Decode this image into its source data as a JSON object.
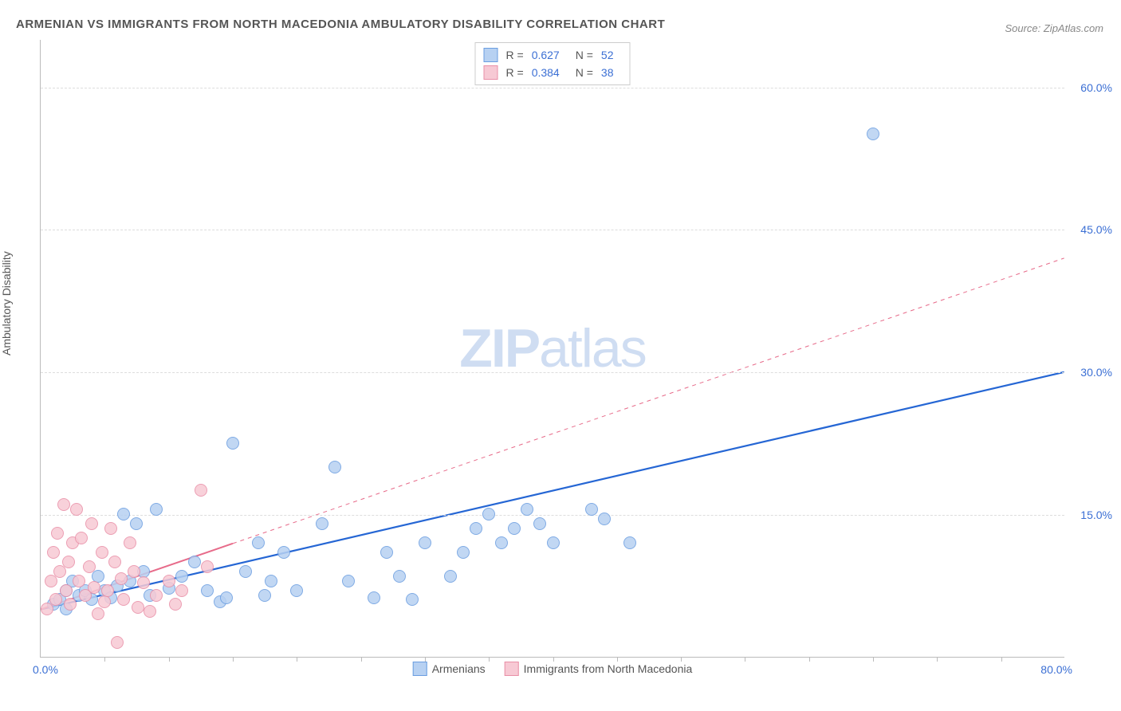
{
  "title": "ARMENIAN VS IMMIGRANTS FROM NORTH MACEDONIA AMBULATORY DISABILITY CORRELATION CHART",
  "source": "Source: ZipAtlas.com",
  "watermark_a": "ZIP",
  "watermark_b": "atlas",
  "ylabel": "Ambulatory Disability",
  "chart": {
    "type": "scatter",
    "background_color": "#ffffff",
    "grid_color": "#dddddd",
    "axis_color": "#bbbbbb",
    "xlim": [
      0,
      80
    ],
    "ylim": [
      0,
      65
    ],
    "xticks_minor": [
      5,
      10,
      15,
      20,
      25,
      30,
      35,
      40,
      45,
      50,
      55,
      60,
      65,
      70,
      75
    ],
    "yticks": [
      {
        "v": 15,
        "label": "15.0%"
      },
      {
        "v": 30,
        "label": "30.0%"
      },
      {
        "v": 45,
        "label": "45.0%"
      },
      {
        "v": 60,
        "label": "60.0%"
      }
    ],
    "xlabel_min": "0.0%",
    "xlabel_max": "80.0%",
    "ytick_color": "#3b6fd4",
    "ytick_fontsize": 14,
    "marker_radius": 8,
    "marker_border_width": 1
  },
  "series": [
    {
      "name": "Armenians",
      "color_fill": "#b7d1f2",
      "color_border": "#6a9de0",
      "line_color": "#2566d4",
      "R": "0.627",
      "N": "52",
      "trend": {
        "x1": 0,
        "y1": 5,
        "x2": 80,
        "y2": 30,
        "dash_from_x": 80,
        "width": 2.2
      },
      "points": [
        [
          1,
          5.5
        ],
        [
          1.5,
          6
        ],
        [
          2,
          7
        ],
        [
          2,
          5
        ],
        [
          2.5,
          8
        ],
        [
          3,
          6.5
        ],
        [
          3.5,
          7
        ],
        [
          4,
          6
        ],
        [
          4.5,
          8.5
        ],
        [
          5,
          7
        ],
        [
          5.5,
          6.2
        ],
        [
          6,
          7.5
        ],
        [
          6.5,
          15
        ],
        [
          7,
          8
        ],
        [
          7.5,
          14
        ],
        [
          8,
          9
        ],
        [
          8.5,
          6.5
        ],
        [
          9,
          15.5
        ],
        [
          10,
          7.2
        ],
        [
          11,
          8.5
        ],
        [
          12,
          10
        ],
        [
          13,
          7
        ],
        [
          14,
          5.8
        ],
        [
          14.5,
          6.2
        ],
        [
          15,
          22.5
        ],
        [
          16,
          9
        ],
        [
          17,
          12
        ],
        [
          17.5,
          6.5
        ],
        [
          18,
          8
        ],
        [
          19,
          11
        ],
        [
          20,
          7
        ],
        [
          22,
          14
        ],
        [
          23,
          20
        ],
        [
          24,
          8
        ],
        [
          26,
          6.2
        ],
        [
          27,
          11
        ],
        [
          28,
          8.5
        ],
        [
          29,
          6
        ],
        [
          30,
          12
        ],
        [
          32,
          8.5
        ],
        [
          33,
          11
        ],
        [
          34,
          13.5
        ],
        [
          35,
          15
        ],
        [
          36,
          12
        ],
        [
          37,
          13.5
        ],
        [
          38,
          15.5
        ],
        [
          39,
          14
        ],
        [
          40,
          12
        ],
        [
          43,
          15.5
        ],
        [
          44,
          14.5
        ],
        [
          46,
          12
        ],
        [
          65,
          55
        ]
      ]
    },
    {
      "name": "Immigrants from North Macedonia",
      "color_fill": "#f7c9d4",
      "color_border": "#e98fa7",
      "line_color": "#e76b8a",
      "R": "0.384",
      "N": "38",
      "trend": {
        "x1": 0,
        "y1": 5,
        "x2": 80,
        "y2": 42,
        "dash_from_x": 15,
        "width": 2
      },
      "points": [
        [
          0.5,
          5
        ],
        [
          0.8,
          8
        ],
        [
          1,
          11
        ],
        [
          1.2,
          6
        ],
        [
          1.3,
          13
        ],
        [
          1.5,
          9
        ],
        [
          1.8,
          16
        ],
        [
          2,
          7
        ],
        [
          2.2,
          10
        ],
        [
          2.3,
          5.5
        ],
        [
          2.5,
          12
        ],
        [
          2.8,
          15.5
        ],
        [
          3,
          8
        ],
        [
          3.2,
          12.5
        ],
        [
          3.5,
          6.5
        ],
        [
          3.8,
          9.5
        ],
        [
          4,
          14
        ],
        [
          4.2,
          7.3
        ],
        [
          4.5,
          4.5
        ],
        [
          4.8,
          11
        ],
        [
          5,
          5.8
        ],
        [
          5.2,
          7
        ],
        [
          5.5,
          13.5
        ],
        [
          5.8,
          10
        ],
        [
          6,
          1.5
        ],
        [
          6.3,
          8.2
        ],
        [
          6.5,
          6
        ],
        [
          7,
          12
        ],
        [
          7.3,
          9
        ],
        [
          7.6,
          5.2
        ],
        [
          8,
          7.8
        ],
        [
          8.5,
          4.8
        ],
        [
          9,
          6.5
        ],
        [
          10,
          8
        ],
        [
          10.5,
          5.5
        ],
        [
          11,
          7
        ],
        [
          12.5,
          17.5
        ],
        [
          13,
          9.5
        ]
      ]
    }
  ],
  "legend": {
    "stats_label_R": "R =",
    "stats_label_N": "N ="
  }
}
